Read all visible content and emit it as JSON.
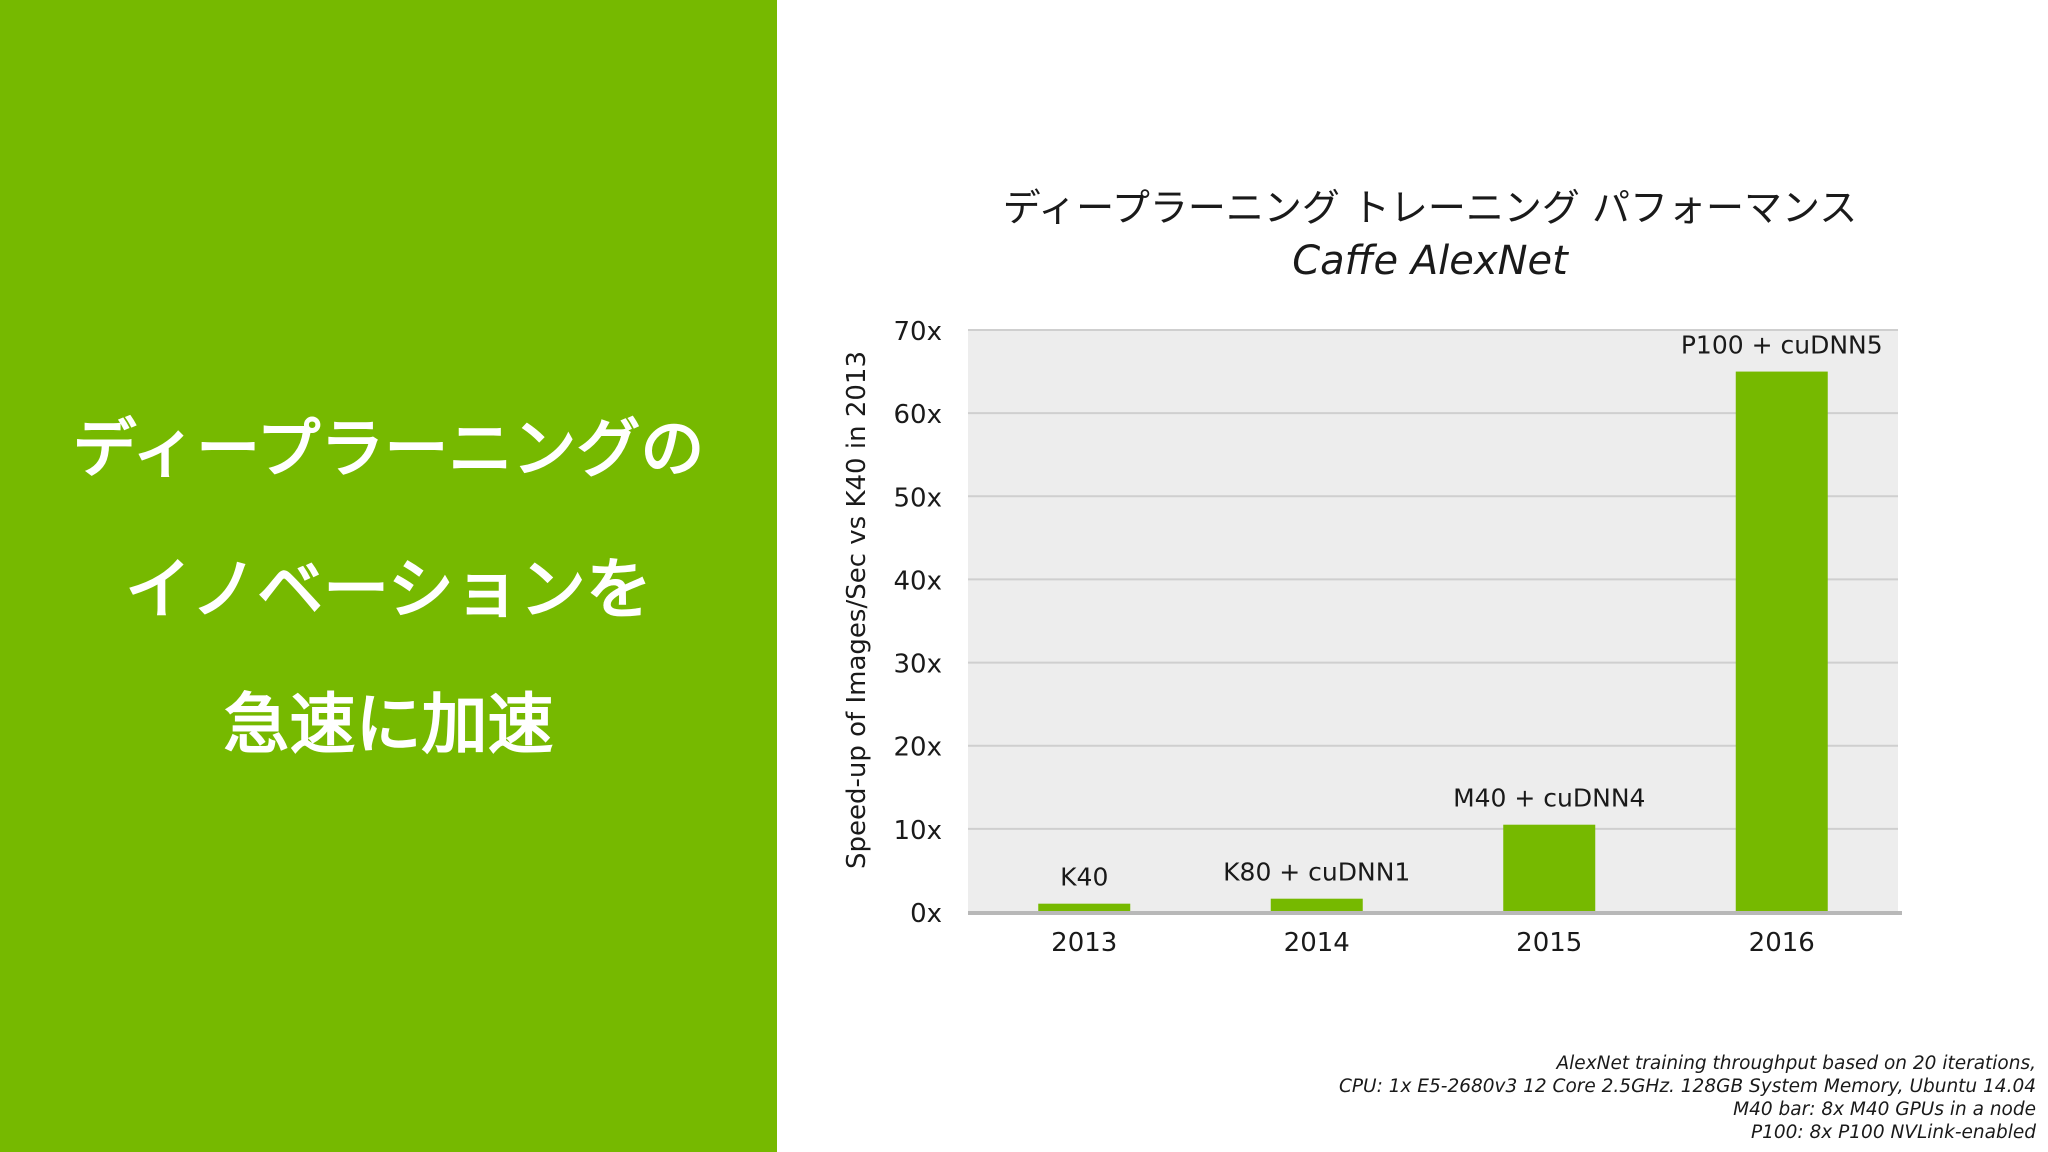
{
  "left_panel": {
    "bg_color": "#76b900",
    "headline_lines": [
      "ディープラーニングの",
      "イノベーションを",
      "急速に加速"
    ]
  },
  "chart_data": {
    "type": "bar",
    "title": "ディープラーニング トレーニング パフォーマンス",
    "subtitle": "Caffe AlexNet",
    "ylabel": "Speed-up of Images/Sec vs K40 in 2013",
    "xlabel": "",
    "categories": [
      "2013",
      "2014",
      "2015",
      "2016"
    ],
    "values": [
      1,
      1.6,
      10.5,
      65
    ],
    "bar_labels": [
      "K40",
      "K80 + cuDNN1",
      "M40 + cuDNN4",
      "P100 + cuDNN5"
    ],
    "ylim": [
      0,
      70
    ],
    "yticks": [
      0,
      10,
      20,
      30,
      40,
      50,
      60,
      70
    ],
    "ytick_labels": [
      "0x",
      "10x",
      "20x",
      "30x",
      "40x",
      "50x",
      "60x",
      "70x"
    ],
    "grid": true,
    "bar_color": "#76b900",
    "plot_bg_color": "#ededed",
    "grid_color": "#cfcfcf"
  },
  "footnote": {
    "lines": [
      "AlexNet training throughput based on 20 iterations,",
      "CPU: 1x E5-2680v3 12 Core 2.5GHz. 128GB System Memory, Ubuntu 14.04",
      "M40 bar: 8x M40 GPUs in a node",
      "P100: 8x P100 NVLink-enabled"
    ]
  }
}
